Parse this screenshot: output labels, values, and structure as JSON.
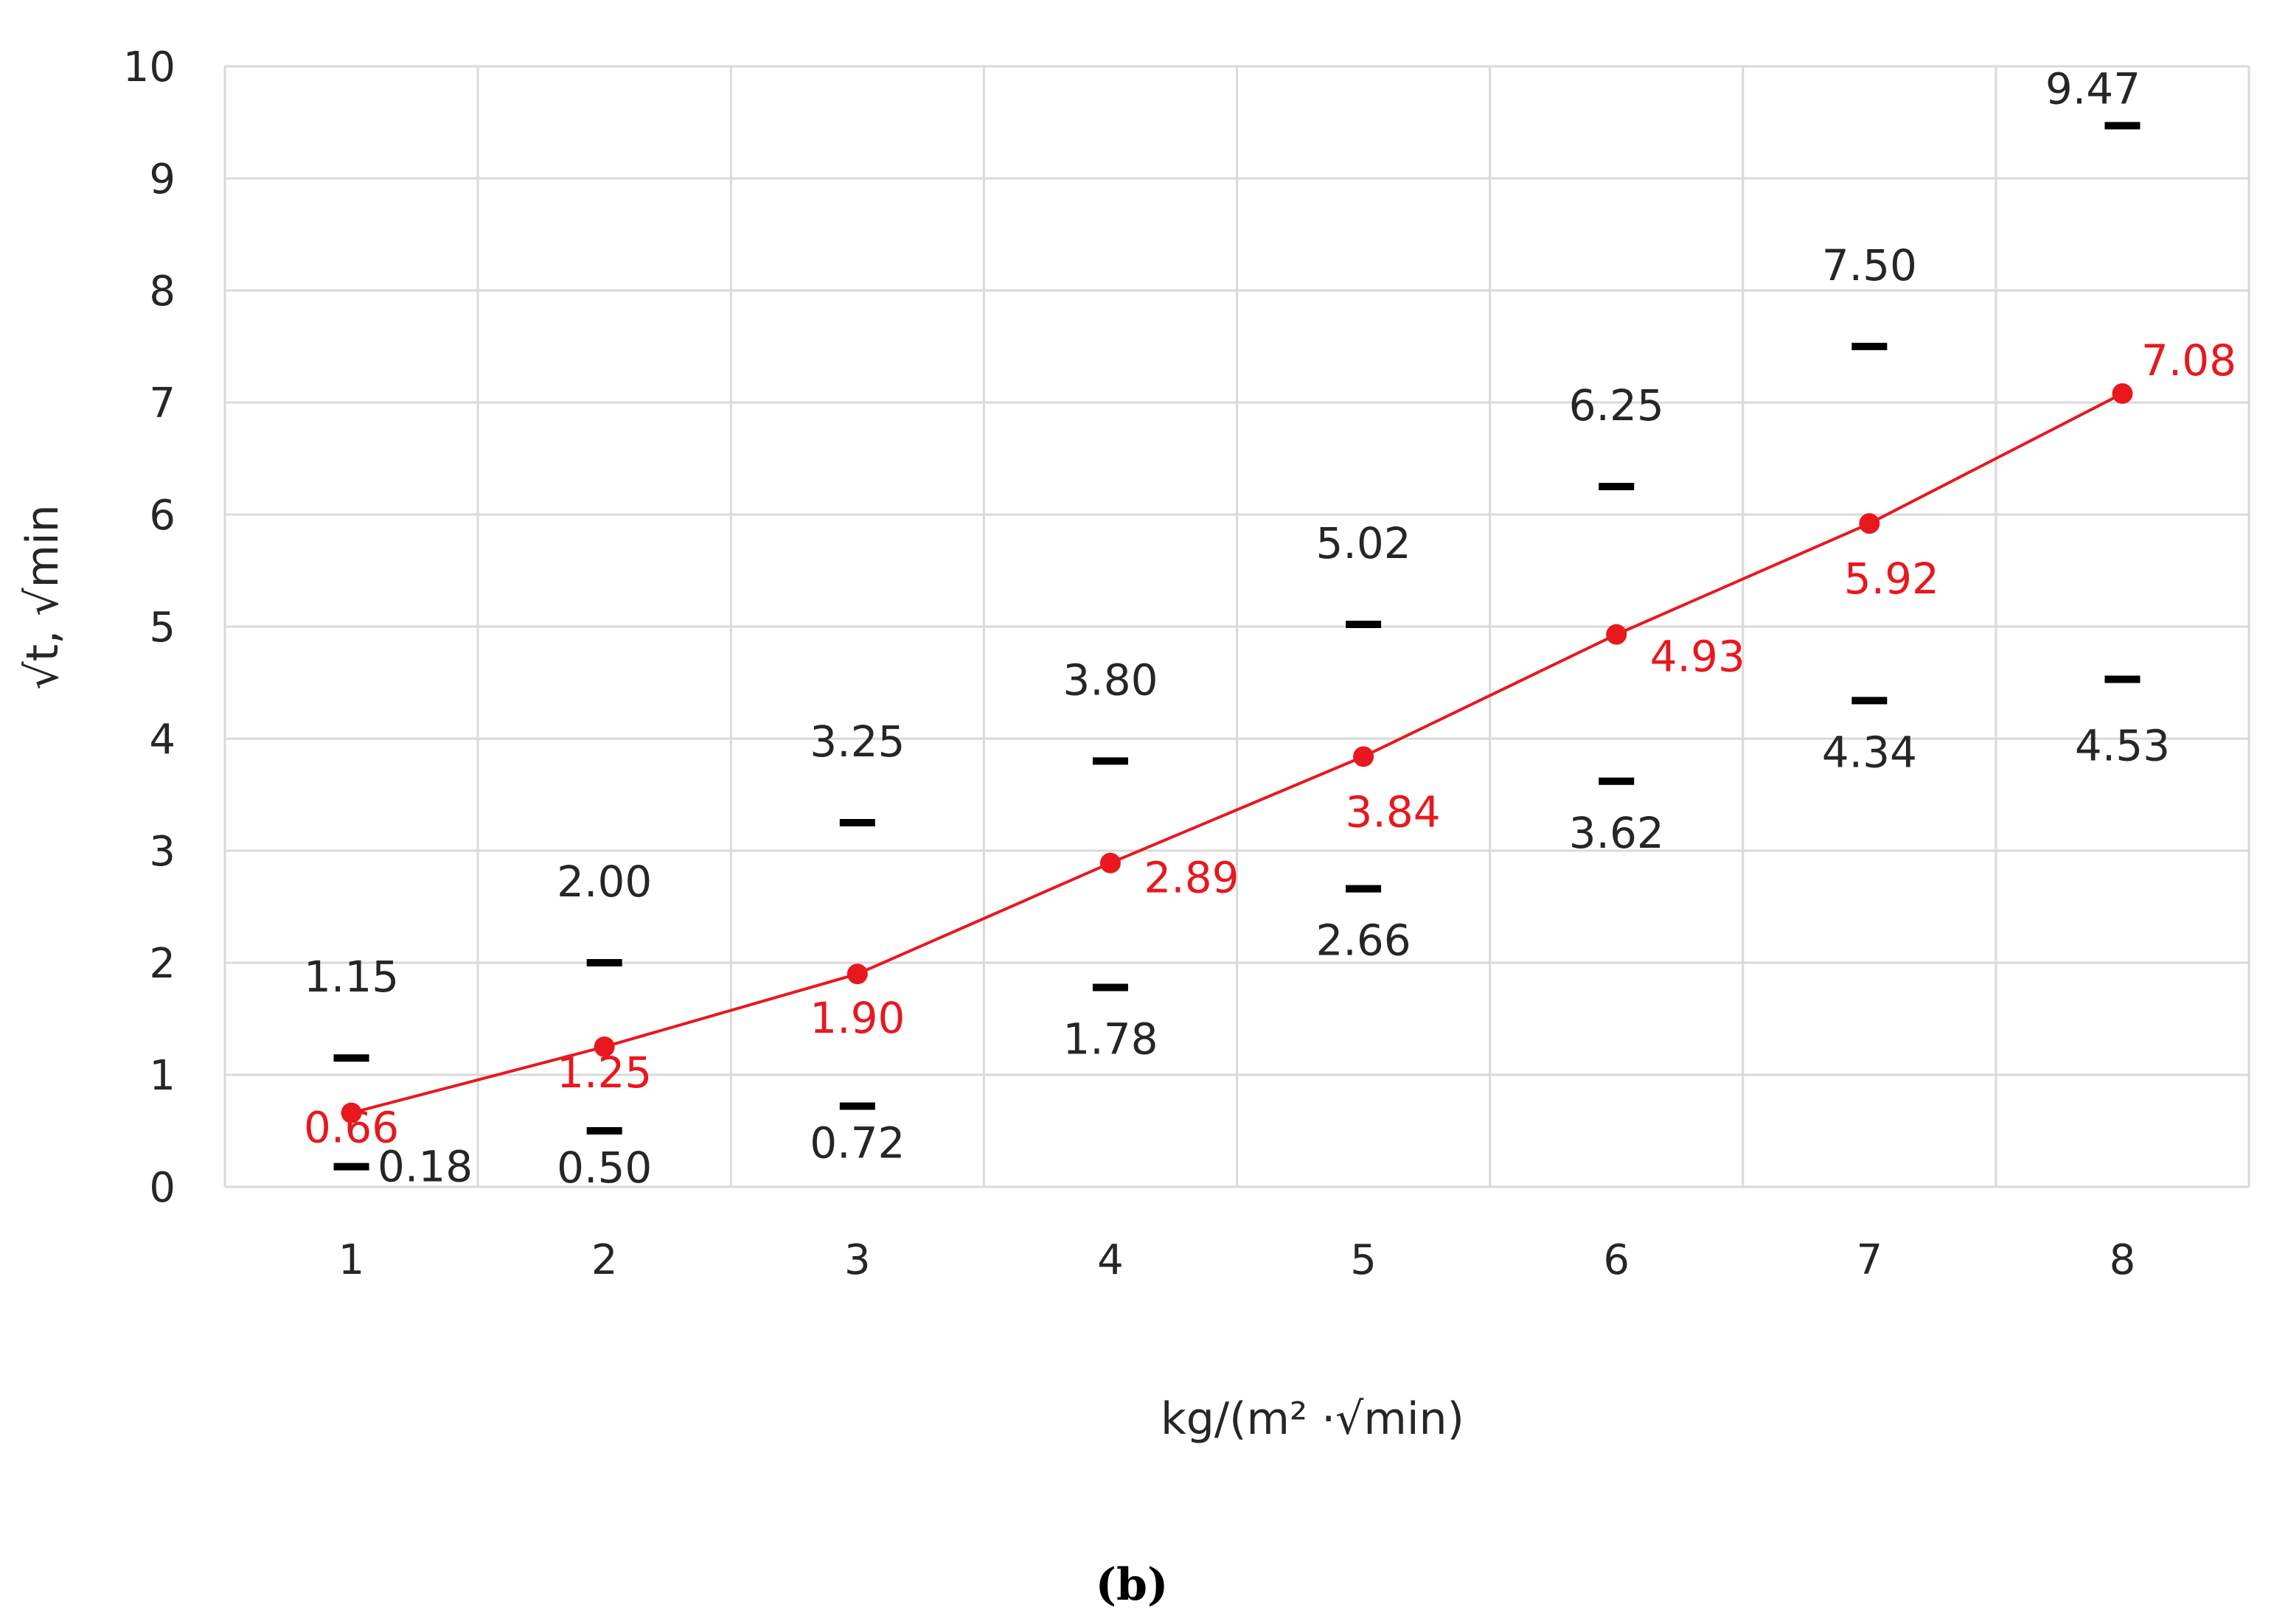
{
  "chart_data": {
    "type": "line",
    "xlabel": "kg/(m² ·√min)",
    "ylabel": "√t, √min",
    "panel_label": "(b)",
    "ylim": [
      0,
      10
    ],
    "yticks": [
      "0",
      "1",
      "2",
      "3",
      "4",
      "5",
      "6",
      "7",
      "8",
      "9",
      "10"
    ],
    "categories": [
      "1",
      "2",
      "3",
      "4",
      "5",
      "6",
      "7",
      "8"
    ],
    "grid": true,
    "series": [
      {
        "role": "mean",
        "color": "#e8181e",
        "values": [
          0.66,
          1.25,
          1.9,
          2.89,
          3.84,
          4.93,
          5.92,
          7.08
        ],
        "labels": [
          "0.66",
          "1.25",
          "1.90",
          "2.89",
          "3.84",
          "4.93",
          "5.92",
          "7.08"
        ]
      },
      {
        "role": "upper",
        "color": "#000000",
        "values": [
          1.15,
          2.0,
          3.25,
          3.8,
          5.02,
          6.25,
          7.5,
          9.47
        ],
        "labels": [
          "1.15",
          "2.00",
          "3.25",
          "3.80",
          "5.02",
          "6.25",
          "7.50",
          "9.47"
        ]
      },
      {
        "role": "lower",
        "color": "#000000",
        "values": [
          0.18,
          0.5,
          0.72,
          1.78,
          2.66,
          3.62,
          4.34,
          4.53
        ],
        "labels": [
          "0.18",
          "0.50",
          "0.72",
          "1.78",
          "2.66",
          "3.62",
          "4.34",
          "4.53"
        ]
      }
    ]
  }
}
